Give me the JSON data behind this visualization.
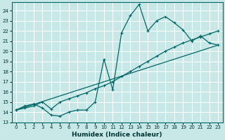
{
  "xlabel": "Humidex (Indice chaleur)",
  "bg_color": "#c8e8e8",
  "grid_color": "#ffffff",
  "line_color": "#006666",
  "xlim": [
    -0.5,
    23.5
  ],
  "ylim": [
    13,
    24.8
  ],
  "xticks": [
    0,
    1,
    2,
    3,
    4,
    5,
    6,
    7,
    8,
    9,
    10,
    11,
    12,
    13,
    14,
    15,
    16,
    17,
    18,
    19,
    20,
    21,
    22,
    23
  ],
  "yticks": [
    13,
    14,
    15,
    16,
    17,
    18,
    19,
    20,
    21,
    22,
    23,
    24
  ],
  "line1_x": [
    0,
    1,
    2,
    3,
    4,
    5,
    6,
    7,
    8,
    9,
    10,
    11,
    12,
    13,
    14,
    15,
    16,
    17,
    18,
    19,
    20,
    21,
    22,
    23
  ],
  "line1_y": [
    14.2,
    14.6,
    14.8,
    14.4,
    13.7,
    13.6,
    14.0,
    14.2,
    14.2,
    15.0,
    19.2,
    16.2,
    21.8,
    23.5,
    24.6,
    22.0,
    23.0,
    23.4,
    22.8,
    22.1,
    21.0,
    21.5,
    20.8,
    20.6
  ],
  "line2_x": [
    0,
    1,
    2,
    3,
    4,
    5,
    6,
    7,
    8,
    9,
    10,
    11,
    12,
    13,
    14,
    15,
    16,
    17,
    18,
    19,
    20,
    21,
    22,
    23
  ],
  "line2_y": [
    14.2,
    14.4,
    14.6,
    15.0,
    14.3,
    15.0,
    15.3,
    15.6,
    15.9,
    16.3,
    16.6,
    17.0,
    17.5,
    18.0,
    18.5,
    19.0,
    19.5,
    20.0,
    20.4,
    20.8,
    21.1,
    21.4,
    21.7,
    22.0
  ],
  "line3_x": [
    0,
    23
  ],
  "line3_y": [
    14.2,
    20.6
  ]
}
